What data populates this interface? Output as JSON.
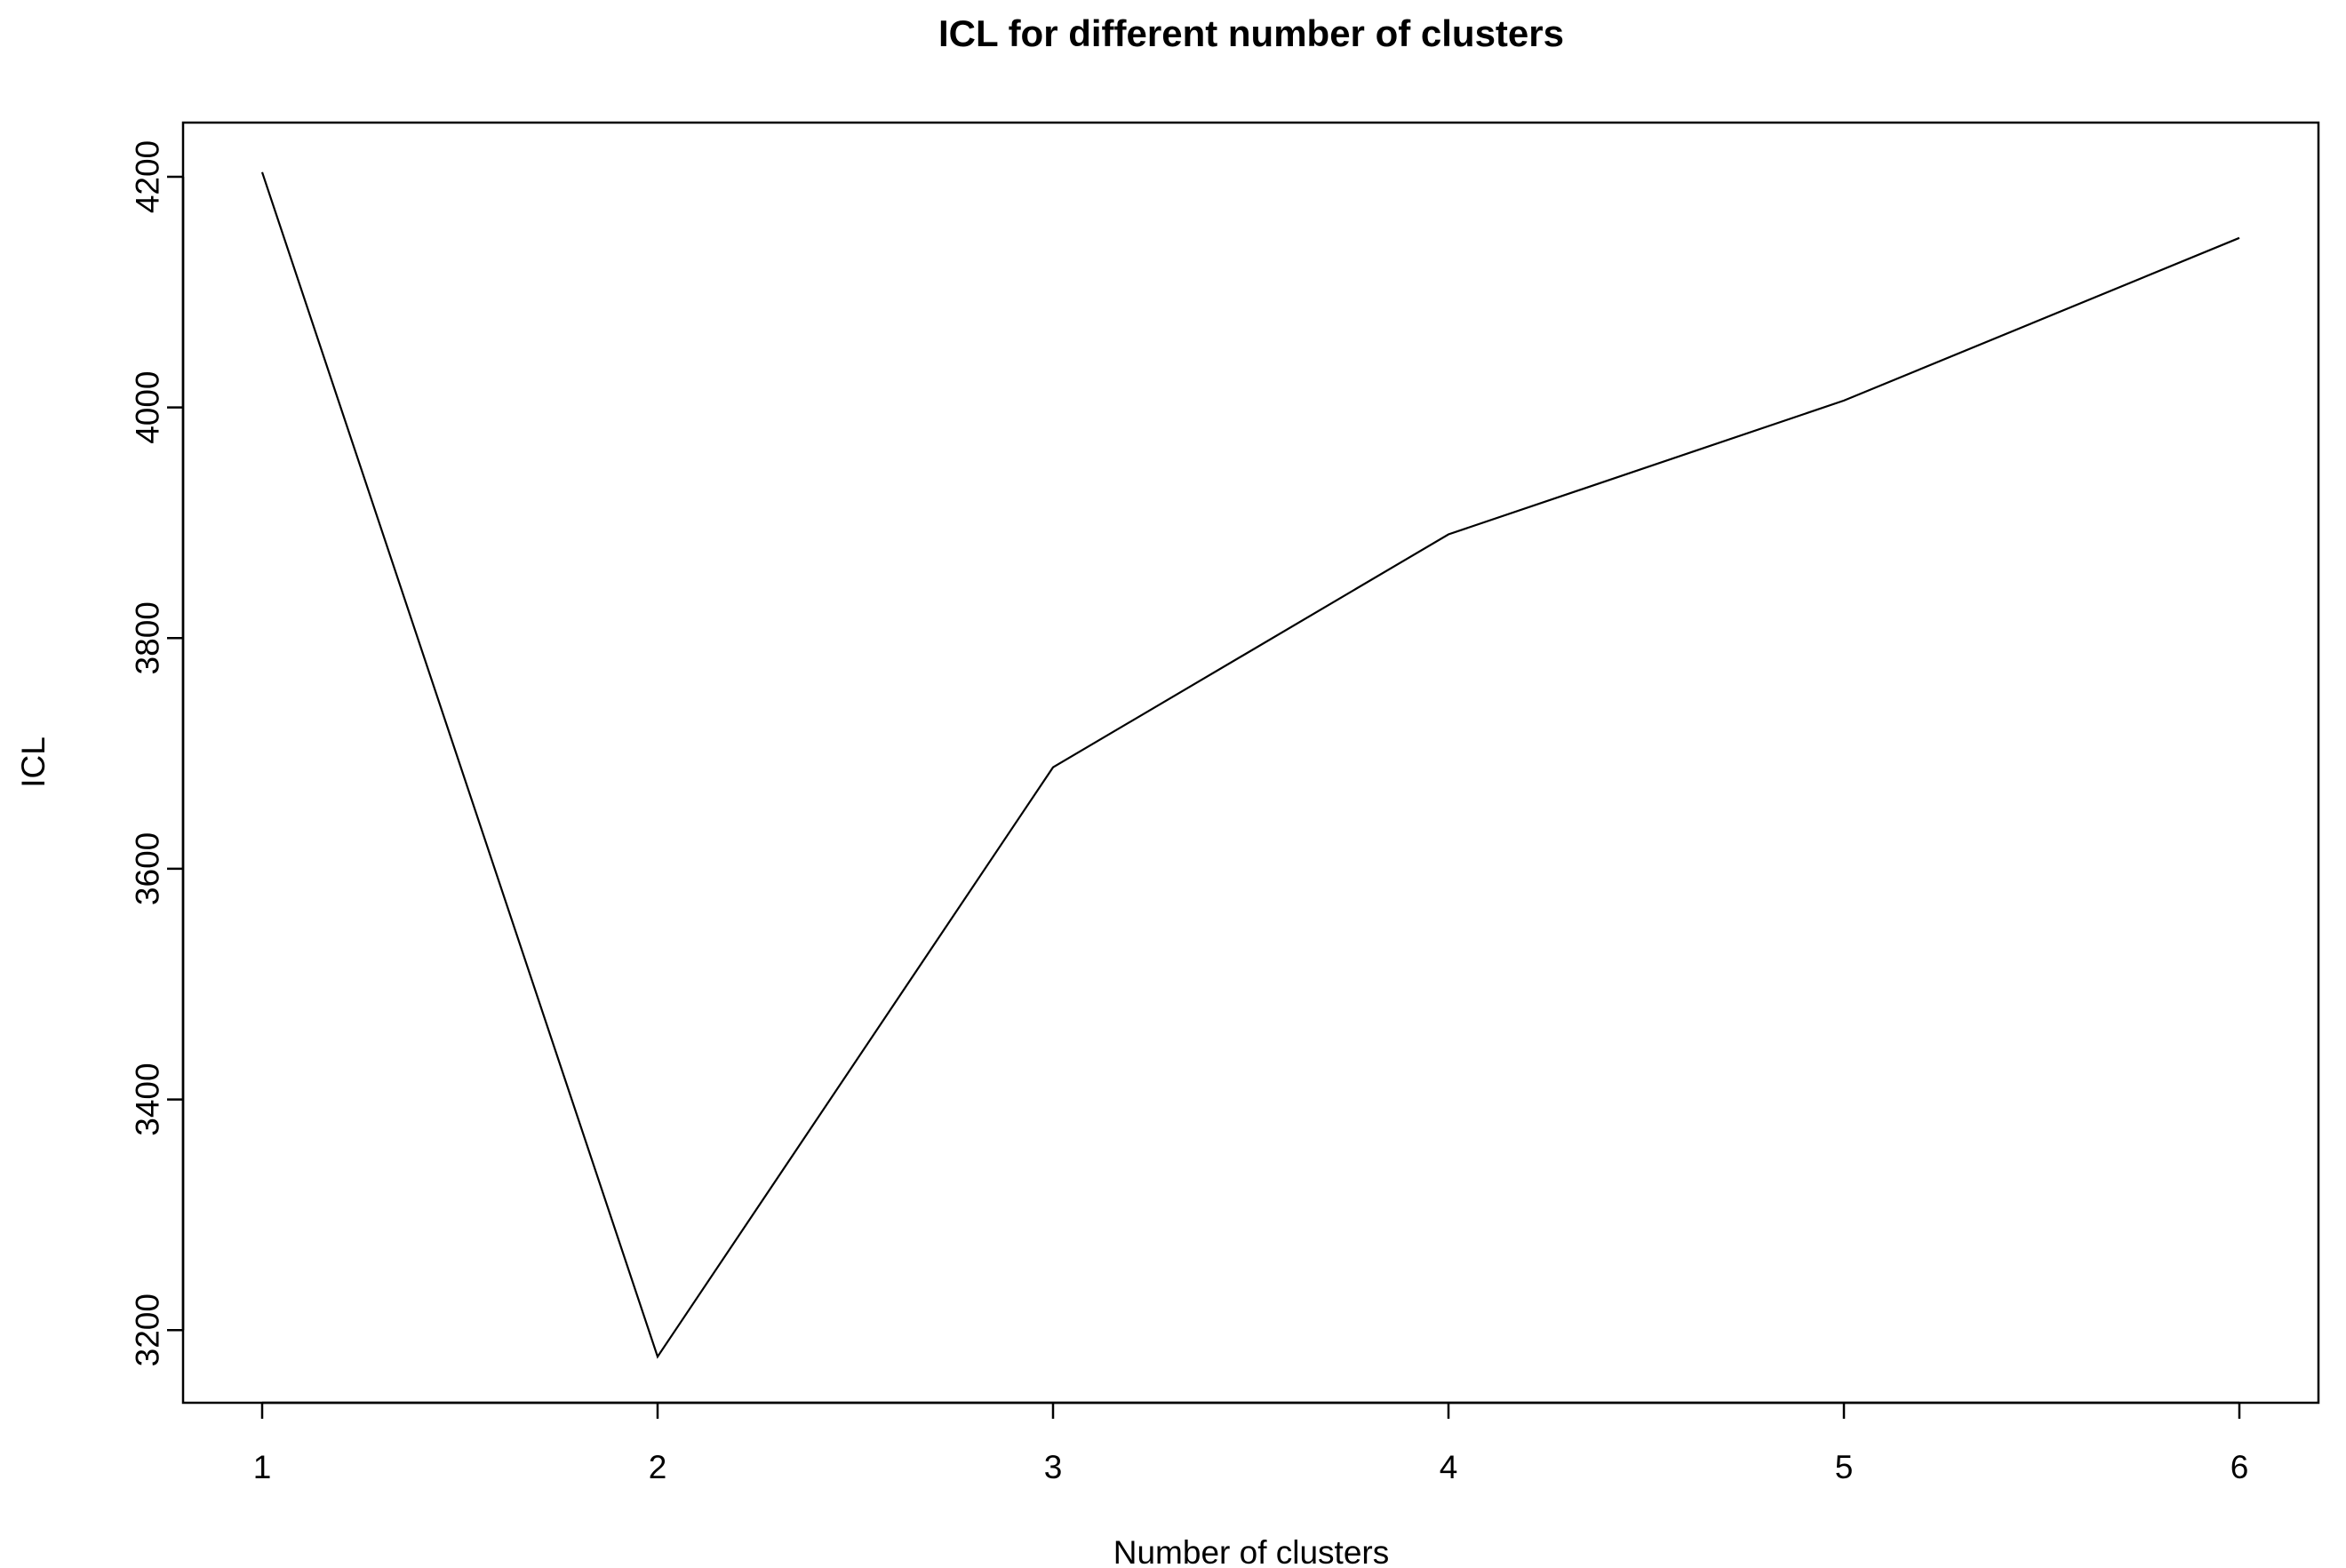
{
  "chart_data": {
    "type": "line",
    "title": "ICL for different number of clusters",
    "xlabel": "Number of clusters",
    "ylabel": "ICL",
    "x": [
      1,
      2,
      3,
      4,
      5,
      6
    ],
    "series": [
      {
        "values": [
          4204,
          3177,
          3688,
          3890,
          4006,
          4147
        ]
      }
    ],
    "xlim": [
      0.8,
      6.2
    ],
    "ylim": [
      3137,
      4247
    ],
    "xticks": [
      1,
      2,
      3,
      4,
      5,
      6
    ],
    "yticks": [
      3200,
      3400,
      3600,
      3800,
      4000,
      4200
    ],
    "grid": false,
    "line_color": "#000000"
  }
}
